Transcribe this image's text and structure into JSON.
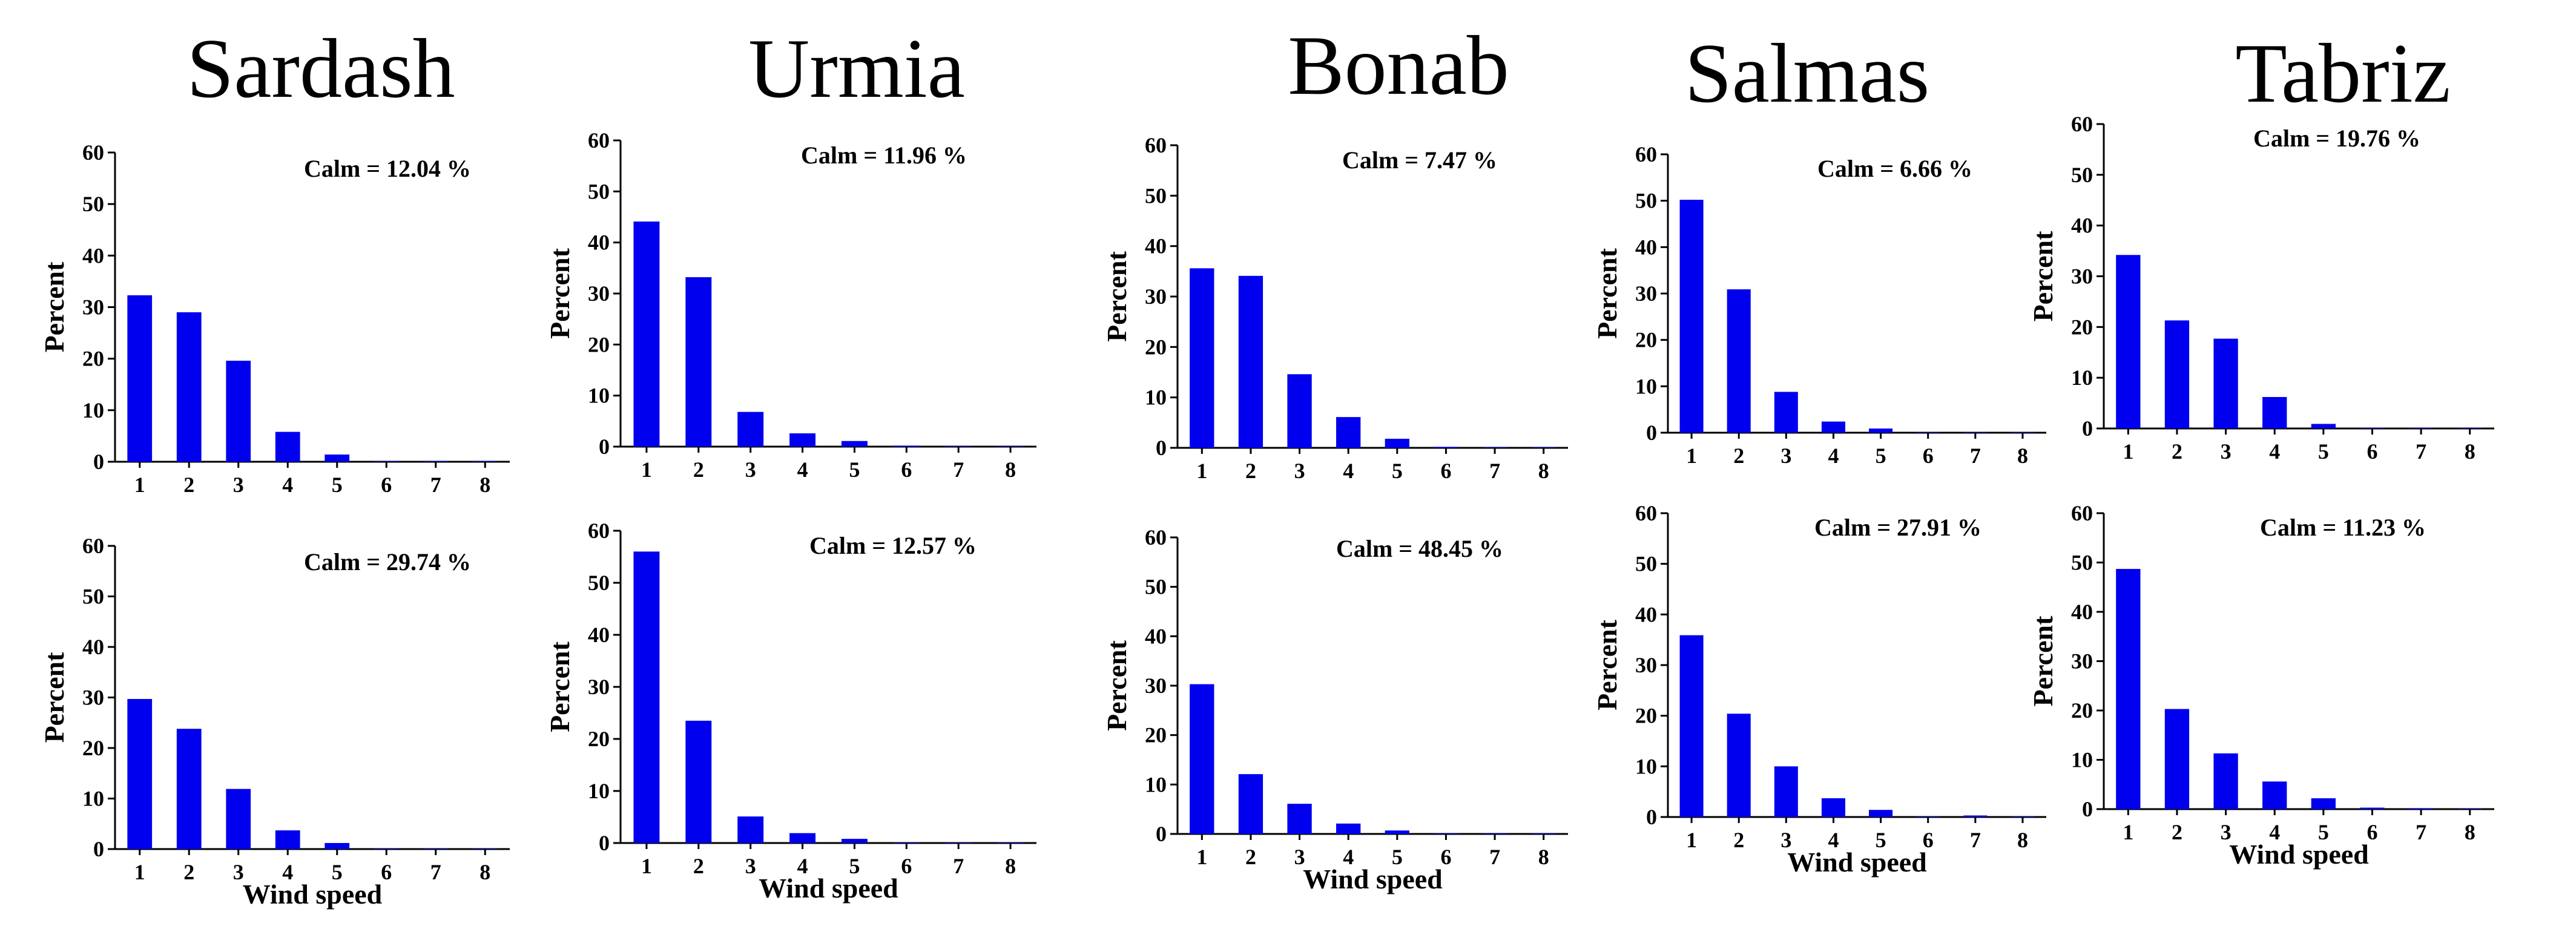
{
  "stations": [
    "Sardash",
    "Urmia",
    "Bonab",
    "Salmas",
    "Tabriz"
  ],
  "colors": {
    "bar": "#0000ee",
    "axis": "#000000"
  },
  "chart_data": [
    {
      "type": "bar",
      "station": "Sardash",
      "row": "top",
      "ylabel": "Percent",
      "xlabel": "",
      "ylim": [
        0,
        60
      ],
      "yticks": [
        0,
        10,
        20,
        30,
        40,
        50,
        60
      ],
      "categories": [
        "1",
        "2",
        "3",
        "4",
        "5",
        "6",
        "7",
        "8"
      ],
      "values": [
        32.3,
        29.0,
        19.6,
        5.8,
        1.4,
        0.1,
        0.1,
        0.1
      ],
      "calm": "Calm = 12.04 %"
    },
    {
      "type": "bar",
      "station": "Urmia",
      "row": "top",
      "ylabel": "Percent",
      "xlabel": "",
      "ylim": [
        0,
        60
      ],
      "yticks": [
        0,
        10,
        20,
        30,
        40,
        50,
        60
      ],
      "categories": [
        "1",
        "2",
        "3",
        "4",
        "5",
        "6",
        "7",
        "8"
      ],
      "values": [
        44.1,
        33.2,
        6.8,
        2.6,
        1.1,
        0.2,
        0.1,
        0.1
      ],
      "calm": "Calm = 11.96 %"
    },
    {
      "type": "bar",
      "station": "Bonab",
      "row": "top",
      "ylabel": "Percent",
      "xlabel": "",
      "ylim": [
        0,
        60
      ],
      "yticks": [
        0,
        10,
        20,
        30,
        40,
        50,
        60
      ],
      "categories": [
        "1",
        "2",
        "3",
        "4",
        "5",
        "6",
        "7",
        "8"
      ],
      "values": [
        35.6,
        34.1,
        14.6,
        6.1,
        1.8,
        0.2,
        0.1,
        0.1
      ],
      "calm": "Calm = 7.47 %"
    },
    {
      "type": "bar",
      "station": "Salmas",
      "row": "top",
      "ylabel": "Percent",
      "xlabel": "",
      "ylim": [
        0,
        60
      ],
      "yticks": [
        0,
        10,
        20,
        30,
        40,
        50,
        60
      ],
      "categories": [
        "1",
        "2",
        "3",
        "4",
        "5",
        "6",
        "7",
        "8"
      ],
      "values": [
        50.2,
        30.9,
        8.8,
        2.4,
        0.9,
        0.1,
        0.1,
        0.1
      ],
      "calm": "Calm = 6.66 %"
    },
    {
      "type": "bar",
      "station": "Tabriz",
      "row": "top",
      "ylabel": "Percent",
      "xlabel": "",
      "ylim": [
        0,
        60
      ],
      "yticks": [
        0,
        10,
        20,
        30,
        40,
        50,
        60
      ],
      "categories": [
        "1",
        "2",
        "3",
        "4",
        "5",
        "6",
        "7",
        "8"
      ],
      "values": [
        34.2,
        21.3,
        17.7,
        6.2,
        0.9,
        0.1,
        0.1,
        0.1
      ],
      "calm": "Calm = 19.76 %"
    },
    {
      "type": "bar",
      "station": "Sardash",
      "row": "bottom",
      "ylabel": "Percent",
      "xlabel": "Wind speed",
      "ylim": [
        0,
        60
      ],
      "yticks": [
        0,
        10,
        20,
        30,
        40,
        50,
        60
      ],
      "categories": [
        "1",
        "2",
        "3",
        "4",
        "5",
        "6",
        "7",
        "8"
      ],
      "values": [
        29.7,
        23.8,
        11.9,
        3.7,
        1.2,
        0.1,
        0.1,
        0.1
      ],
      "calm": "Calm = 29.74 %"
    },
    {
      "type": "bar",
      "station": "Urmia",
      "row": "bottom",
      "ylabel": "Percent",
      "xlabel": "Wind speed",
      "ylim": [
        0,
        60
      ],
      "yticks": [
        0,
        10,
        20,
        30,
        40,
        50,
        60
      ],
      "categories": [
        "1",
        "2",
        "3",
        "4",
        "5",
        "6",
        "7",
        "8"
      ],
      "values": [
        56.0,
        23.5,
        5.1,
        1.9,
        0.8,
        0.1,
        0.1,
        0.1
      ],
      "calm": "Calm = 12.57 %"
    },
    {
      "type": "bar",
      "station": "Bonab",
      "row": "bottom",
      "ylabel": "Percent",
      "xlabel": "Wind speed",
      "ylim": [
        0,
        60
      ],
      "yticks": [
        0,
        10,
        20,
        30,
        40,
        50,
        60
      ],
      "categories": [
        "1",
        "2",
        "3",
        "4",
        "5",
        "6",
        "7",
        "8"
      ],
      "values": [
        30.3,
        12.1,
        6.1,
        2.1,
        0.7,
        0.1,
        0.1,
        0.1
      ],
      "calm": "Calm = 48.45 %"
    },
    {
      "type": "bar",
      "station": "Salmas",
      "row": "bottom",
      "ylabel": "Percent",
      "xlabel": "Wind speed",
      "ylim": [
        0,
        60
      ],
      "yticks": [
        0,
        10,
        20,
        30,
        40,
        50,
        60
      ],
      "categories": [
        "1",
        "2",
        "3",
        "4",
        "5",
        "6",
        "7",
        "8"
      ],
      "values": [
        35.9,
        20.4,
        10.0,
        3.7,
        1.4,
        0.1,
        0.3,
        0.1
      ],
      "calm": "Calm = 27.91 %"
    },
    {
      "type": "bar",
      "station": "Tabriz",
      "row": "bottom",
      "ylabel": "Percent",
      "xlabel": "Wind speed",
      "ylim": [
        0,
        60
      ],
      "yticks": [
        0,
        10,
        20,
        30,
        40,
        50,
        60
      ],
      "categories": [
        "1",
        "2",
        "3",
        "4",
        "5",
        "6",
        "7",
        "8"
      ],
      "values": [
        48.7,
        20.3,
        11.3,
        5.6,
        2.2,
        0.3,
        0.2,
        0.1
      ],
      "calm": "Calm = 11.23 %"
    }
  ]
}
